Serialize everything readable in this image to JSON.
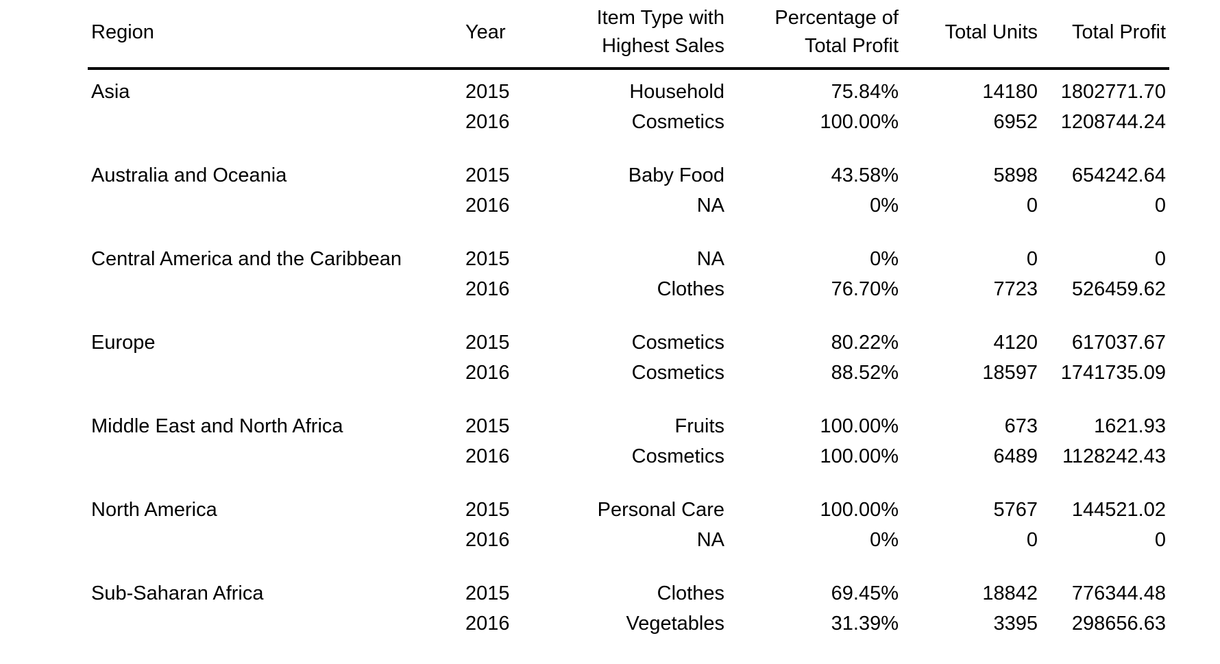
{
  "table": {
    "headers": {
      "region": "Region",
      "year": "Year",
      "item_line1": "Item Type with",
      "item_line2": "Highest Sales",
      "pct_line1": "Percentage of",
      "pct_line2": "Total Profit",
      "units": "Total Units",
      "profit": "Total Profit"
    },
    "groups": [
      {
        "region": "Asia",
        "rows": [
          {
            "year": "2015",
            "item": "Household",
            "pct": "75.84%",
            "units": "14180",
            "profit": "1802771.70"
          },
          {
            "year": "2016",
            "item": "Cosmetics",
            "pct": "100.00%",
            "units": "6952",
            "profit": "1208744.24"
          }
        ]
      },
      {
        "region": "Australia and Oceania",
        "rows": [
          {
            "year": "2015",
            "item": "Baby Food",
            "pct": "43.58%",
            "units": "5898",
            "profit": "654242.64"
          },
          {
            "year": "2016",
            "item": "NA",
            "pct": "0%",
            "units": "0",
            "profit": "0"
          }
        ]
      },
      {
        "region": "Central America and the Caribbean",
        "rows": [
          {
            "year": "2015",
            "item": "NA",
            "pct": "0%",
            "units": "0",
            "profit": "0"
          },
          {
            "year": "2016",
            "item": "Clothes",
            "pct": "76.70%",
            "units": "7723",
            "profit": "526459.62"
          }
        ]
      },
      {
        "region": "Europe",
        "rows": [
          {
            "year": "2015",
            "item": "Cosmetics",
            "pct": "80.22%",
            "units": "4120",
            "profit": "617037.67"
          },
          {
            "year": "2016",
            "item": "Cosmetics",
            "pct": "88.52%",
            "units": "18597",
            "profit": "1741735.09"
          }
        ]
      },
      {
        "region": "Middle East and North Africa",
        "rows": [
          {
            "year": "2015",
            "item": "Fruits",
            "pct": "100.00%",
            "units": "673",
            "profit": "1621.93"
          },
          {
            "year": "2016",
            "item": "Cosmetics",
            "pct": "100.00%",
            "units": "6489",
            "profit": "1128242.43"
          }
        ]
      },
      {
        "region": "North America",
        "rows": [
          {
            "year": "2015",
            "item": "Personal Care",
            "pct": "100.00%",
            "units": "5767",
            "profit": "144521.02"
          },
          {
            "year": "2016",
            "item": "NA",
            "pct": "0%",
            "units": "0",
            "profit": "0"
          }
        ]
      },
      {
        "region": "Sub-Saharan Africa",
        "rows": [
          {
            "year": "2015",
            "item": "Clothes",
            "pct": "69.45%",
            "units": "18842",
            "profit": "776344.48"
          },
          {
            "year": "2016",
            "item": "Vegetables",
            "pct": "31.39%",
            "units": "3395",
            "profit": "298656.63"
          }
        ]
      }
    ]
  }
}
